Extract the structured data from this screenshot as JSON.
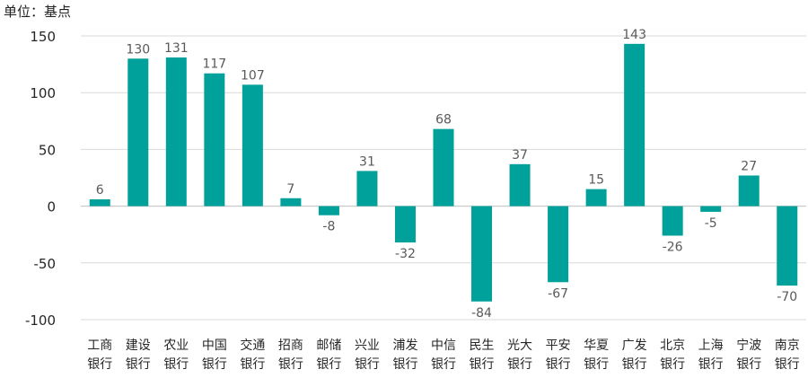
{
  "unit_label": "单位：基点",
  "colors": {
    "bar": "#00A19A",
    "axis": "#bfbfbf",
    "grid": "#d9d9d9",
    "text": "#262626",
    "label": "#595959"
  },
  "chart_data": {
    "type": "bar",
    "title": "",
    "xlabel": "",
    "ylabel": "单位：基点",
    "ylim": [
      -100,
      150
    ],
    "yticks": [
      150,
      100,
      50,
      0,
      -50,
      -100
    ],
    "grid": true,
    "legend": "none",
    "categories": [
      [
        "工商",
        "银行"
      ],
      [
        "建设",
        "银行"
      ],
      [
        "农业",
        "银行"
      ],
      [
        "中国",
        "银行"
      ],
      [
        "交通",
        "银行"
      ],
      [
        "招商",
        "银行"
      ],
      [
        "邮储",
        "银行"
      ],
      [
        "兴业",
        "银行"
      ],
      [
        "浦发",
        "银行"
      ],
      [
        "中信",
        "银行"
      ],
      [
        "民生",
        "银行"
      ],
      [
        "光大",
        "银行"
      ],
      [
        "平安",
        "银行"
      ],
      [
        "华夏",
        "银行"
      ],
      [
        "广发",
        "银行"
      ],
      [
        "北京",
        "银行"
      ],
      [
        "上海",
        "银行"
      ],
      [
        "宁波",
        "银行"
      ],
      [
        "南京",
        "银行"
      ]
    ],
    "values": [
      6,
      130,
      131,
      117,
      107,
      7,
      -8,
      31,
      -32,
      68,
      -84,
      37,
      -67,
      15,
      143,
      -26,
      -5,
      27,
      -70
    ]
  }
}
